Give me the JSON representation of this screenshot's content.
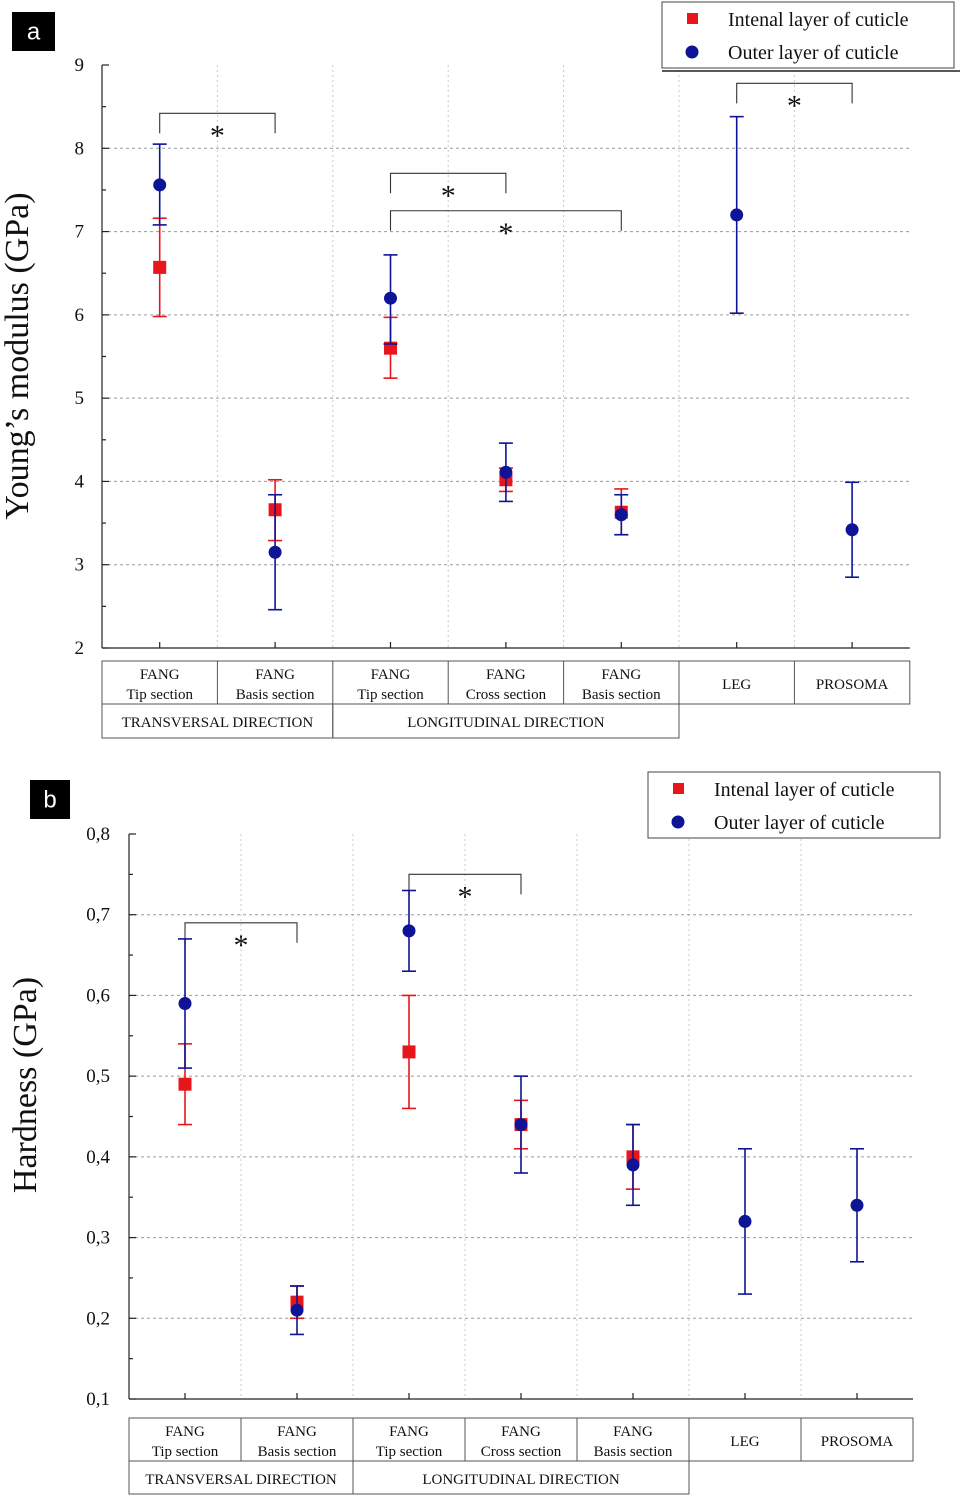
{
  "chart_data": [
    {
      "panel": "a",
      "type": "scatter",
      "ylabel": "Young’s modulus (GPa)",
      "ylim": [
        2,
        9
      ],
      "yticks": [
        "2",
        "3",
        "4",
        "5",
        "6",
        "7",
        "8",
        "9"
      ],
      "categories": [
        {
          "line1": "FANG",
          "line2": "Tip section"
        },
        {
          "line1": "FANG",
          "line2": "Basis section"
        },
        {
          "line1": "FANG",
          "line2": "Tip section"
        },
        {
          "line1": "FANG",
          "line2": "Cross section"
        },
        {
          "line1": "FANG",
          "line2": "Basis section"
        },
        {
          "line1": "LEG",
          "line2": ""
        },
        {
          "line1": "PROSOMA",
          "line2": ""
        }
      ],
      "groups": [
        {
          "label": "TRANSVERSAL DIRECTION",
          "from": 0,
          "to": 1
        },
        {
          "label": "LONGITUDINAL DIRECTION",
          "from": 2,
          "to": 4
        }
      ],
      "legend": [
        "Intenal layer of cuticle",
        "Outer layer of cuticle"
      ],
      "series": [
        {
          "name": "Intenal layer of cuticle",
          "color": "#e8161b",
          "marker": "square",
          "values": [
            6.57,
            3.66,
            5.6,
            4.02,
            3.63,
            null,
            null
          ],
          "lo": [
            5.98,
            3.29,
            5.24,
            3.88,
            3.36,
            null,
            null
          ],
          "hi": [
            7.16,
            4.02,
            5.97,
            4.16,
            3.91,
            null,
            null
          ]
        },
        {
          "name": "Outer layer of cuticle",
          "color": "#0e1496",
          "marker": "circle",
          "values": [
            7.56,
            3.15,
            6.2,
            4.11,
            3.6,
            7.2,
            3.42
          ],
          "lo": [
            7.08,
            2.46,
            5.65,
            3.76,
            3.36,
            6.02,
            2.85
          ],
          "hi": [
            8.05,
            3.84,
            6.72,
            4.46,
            3.84,
            8.38,
            3.99
          ]
        }
      ],
      "significance": [
        {
          "from": 0,
          "to": 1,
          "y": 8.42,
          "label": "*"
        },
        {
          "from": 2,
          "to": 3,
          "y": 7.7,
          "label": "*"
        },
        {
          "from": 2,
          "to": 4,
          "y": 7.25,
          "label": "*"
        },
        {
          "from": 5,
          "to": 6,
          "y": 8.78,
          "label": "*"
        }
      ]
    },
    {
      "panel": "b",
      "type": "scatter",
      "ylabel": "Hardness (GPa)",
      "ylim": [
        0.1,
        0.8
      ],
      "yticks": [
        "0,1",
        "0,2",
        "0,3",
        "0,4",
        "0,5",
        "0,6",
        "0,7",
        "0,8"
      ],
      "categories": [
        {
          "line1": "FANG",
          "line2": "Tip section"
        },
        {
          "line1": "FANG",
          "line2": "Basis section"
        },
        {
          "line1": "FANG",
          "line2": "Tip section"
        },
        {
          "line1": "FANG",
          "line2": "Cross section"
        },
        {
          "line1": "FANG",
          "line2": "Basis section"
        },
        {
          "line1": "LEG",
          "line2": ""
        },
        {
          "line1": "PROSOMA",
          "line2": ""
        }
      ],
      "groups": [
        {
          "label": "TRANSVERSAL DIRECTION",
          "from": 0,
          "to": 1
        },
        {
          "label": "LONGITUDINAL DIRECTION",
          "from": 2,
          "to": 4
        }
      ],
      "legend": [
        "Intenal layer of cuticle",
        "Outer layer of cuticle"
      ],
      "series": [
        {
          "name": "Intenal layer of cuticle",
          "color": "#e8161b",
          "marker": "square",
          "values": [
            0.49,
            0.22,
            0.53,
            0.44,
            0.4,
            null,
            null
          ],
          "lo": [
            0.44,
            0.2,
            0.46,
            0.41,
            0.36,
            null,
            null
          ],
          "hi": [
            0.54,
            0.24,
            0.6,
            0.47,
            0.44,
            null,
            null
          ]
        },
        {
          "name": "Outer layer of cuticle",
          "color": "#0e1496",
          "marker": "circle",
          "values": [
            0.59,
            0.21,
            0.68,
            0.44,
            0.39,
            0.32,
            0.34
          ],
          "lo": [
            0.51,
            0.18,
            0.63,
            0.38,
            0.34,
            0.23,
            0.27
          ],
          "hi": [
            0.67,
            0.24,
            0.73,
            0.5,
            0.44,
            0.41,
            0.41
          ]
        }
      ],
      "significance": [
        {
          "from": 0,
          "to": 1,
          "y": 0.69,
          "label": "*"
        },
        {
          "from": 2,
          "to": 3,
          "y": 0.75,
          "label": "*"
        }
      ]
    }
  ]
}
